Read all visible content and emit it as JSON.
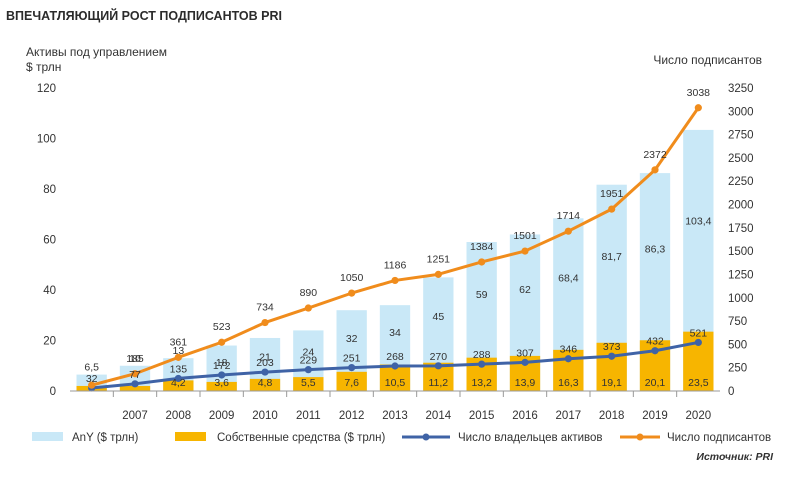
{
  "chart_data": {
    "type": "bar",
    "title": "ВПЕЧАТЛЯЮЩИЙ РОСТ ПОДПИСАНТОВ PRI",
    "y_left_label_line1": "Активы под управлением",
    "y_left_label_line2": "$ трлн",
    "y_right_label": "Число подписантов",
    "source": "Источник: PRI",
    "ylim_left": [
      0,
      120
    ],
    "ylim_right": [
      0,
      3250
    ],
    "y_left_ticks": [
      "0",
      "20",
      "40",
      "60",
      "80",
      "100",
      "120"
    ],
    "y_right_ticks": [
      "0",
      "250",
      "500",
      "750",
      "1000",
      "1250",
      "1500",
      "1750",
      "2000",
      "2250",
      "2500",
      "2750",
      "3000",
      "3250"
    ],
    "categories": [
      "",
      "2007",
      "2008",
      "2009",
      "2010",
      "2011",
      "2012",
      "2013",
      "2014",
      "2015",
      "2016",
      "2017",
      "2018",
      "2019",
      "2020"
    ],
    "series": [
      {
        "name": "AnY ($ трлн)",
        "kind": "bar",
        "color": "#c9e8f7",
        "values": [
          6.5,
          10,
          13,
          18,
          21,
          24,
          32,
          34,
          45,
          59,
          62,
          68.4,
          81.7,
          86.3,
          103.4
        ],
        "labels": [
          "6,5",
          "10",
          "13",
          "18",
          "21",
          "24",
          "32",
          "34",
          "45",
          "59",
          "62",
          "68,4",
          "81,7",
          "86,3",
          "103,4"
        ]
      },
      {
        "name": "Собственные средства ($ трлн)",
        "kind": "bar",
        "color": "#f7b500",
        "values": [
          2,
          2,
          4.2,
          3.6,
          4.8,
          5.5,
          7.6,
          10.5,
          11.2,
          13.2,
          13.9,
          16.3,
          19.1,
          20.1,
          23.5
        ],
        "labels": [
          "",
          "",
          "4,2",
          "3,6",
          "4,8",
          "5,5",
          "7,6",
          "10,5",
          "11,2",
          "13,2",
          "13,9",
          "16,3",
          "19,1",
          "20,1",
          "23,5"
        ]
      },
      {
        "name": "Число владельцев активов",
        "kind": "line",
        "axis": "right",
        "color": "#3f63a6",
        "values": [
          32,
          77,
          135,
          172,
          203,
          229,
          251,
          268,
          270,
          288,
          307,
          346,
          373,
          432,
          521
        ],
        "labels": [
          "32",
          "77",
          "135",
          "172",
          "203",
          "229",
          "251",
          "268",
          "270",
          "288",
          "307",
          "346",
          "373",
          "432",
          "521"
        ]
      },
      {
        "name": "Число подписантов",
        "kind": "line",
        "axis": "right",
        "color": "#f08c1c",
        "values": [
          63,
          185,
          361,
          523,
          734,
          890,
          1050,
          1186,
          1251,
          1384,
          1501,
          1714,
          1951,
          2372,
          3038
        ],
        "labels": [
          "",
          "185",
          "361",
          "523",
          "734",
          "890",
          "1050",
          "1186",
          "1251",
          "1384",
          "1501",
          "1714",
          "1951",
          "2372",
          "3038"
        ]
      }
    ],
    "legend_position": "bottom",
    "grid": false
  }
}
